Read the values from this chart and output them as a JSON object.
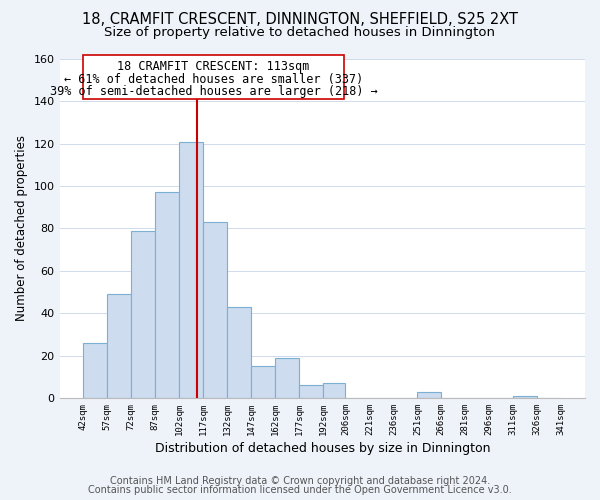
{
  "title": "18, CRAMFIT CRESCENT, DINNINGTON, SHEFFIELD, S25 2XT",
  "subtitle": "Size of property relative to detached houses in Dinnington",
  "xlabel": "Distribution of detached houses by size in Dinnington",
  "ylabel": "Number of detached properties",
  "bar_edges": [
    42,
    57,
    72,
    87,
    102,
    117,
    132,
    147,
    162,
    177,
    192,
    206,
    221,
    236,
    251,
    266,
    281,
    296,
    311,
    326,
    341
  ],
  "bar_heights": [
    26,
    49,
    79,
    97,
    121,
    83,
    43,
    15,
    19,
    6,
    7,
    0,
    0,
    0,
    3,
    0,
    0,
    0,
    1,
    0
  ],
  "bar_color": "#cddcef",
  "bar_edge_color": "#7bafd4",
  "vline_x": 113,
  "vline_color": "#cc0000",
  "ylim": [
    0,
    160
  ],
  "yticks": [
    0,
    20,
    40,
    60,
    80,
    100,
    120,
    140,
    160
  ],
  "annotation_title": "18 CRAMFIT CRESCENT: 113sqm",
  "annotation_line1": "← 61% of detached houses are smaller (337)",
  "annotation_line2": "39% of semi-detached houses are larger (218) →",
  "footer1": "Contains HM Land Registry data © Crown copyright and database right 2024.",
  "footer2": "Contains public sector information licensed under the Open Government Licence v3.0.",
  "background_color": "#eef2f9",
  "plot_bg_color": "#ffffff",
  "title_fontsize": 10.5,
  "subtitle_fontsize": 9.5,
  "xlabel_fontsize": 9,
  "ylabel_fontsize": 8.5,
  "footer_fontsize": 7,
  "annot_fontsize": 8.5
}
